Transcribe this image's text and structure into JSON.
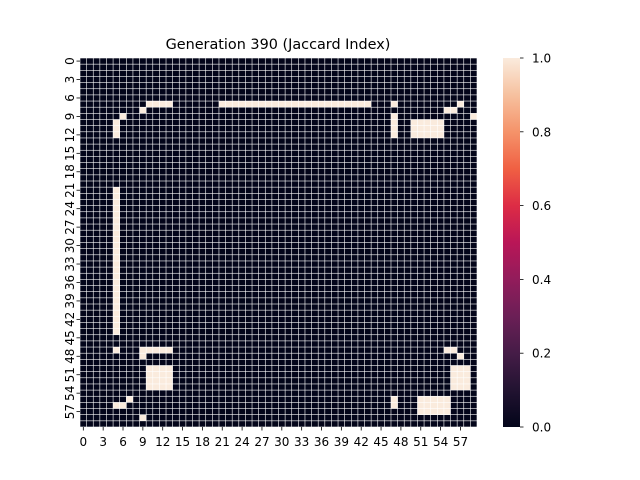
{
  "chart_data": {
    "type": "heatmap",
    "title": "Generation 390 (Jaccard Index)",
    "xlabel": "",
    "ylabel": "",
    "n_rows": 60,
    "n_cols": 60,
    "x_tick_labels": [
      "0",
      "3",
      "6",
      "9",
      "12",
      "15",
      "18",
      "21",
      "24",
      "27",
      "30",
      "33",
      "36",
      "39",
      "42",
      "45",
      "48",
      "51",
      "54",
      "57"
    ],
    "y_tick_labels": [
      "0",
      "3",
      "6",
      "9",
      "12",
      "15",
      "18",
      "21",
      "24",
      "27",
      "30",
      "33",
      "36",
      "39",
      "42",
      "45",
      "48",
      "51",
      "54",
      "57"
    ],
    "colorbar": {
      "min": 0.0,
      "max": 1.0,
      "tick_labels": [
        "0.0",
        "0.2",
        "0.4",
        "0.6",
        "0.8",
        "1.0"
      ],
      "colormap": "rocket"
    },
    "colors": {
      "background": "#000000",
      "zero": "#03051a",
      "one": "#faebdd",
      "grid": "#ffffff"
    },
    "value_default": 0.0,
    "value_high": 1.0,
    "high_value_cells": [
      {
        "rows": [
          7,
          7
        ],
        "cols": [
          10,
          13
        ]
      },
      {
        "rows": [
          7,
          7
        ],
        "cols": [
          21,
          43
        ]
      },
      {
        "rows": [
          8,
          8
        ],
        "cols": [
          9,
          9
        ]
      },
      {
        "rows": [
          7,
          7
        ],
        "cols": [
          47,
          47
        ]
      },
      {
        "rows": [
          7,
          7
        ],
        "cols": [
          57,
          57
        ]
      },
      {
        "rows": [
          8,
          8
        ],
        "cols": [
          55,
          56
        ]
      },
      {
        "rows": [
          9,
          9
        ],
        "cols": [
          59,
          59
        ]
      },
      {
        "rows": [
          9,
          9
        ],
        "cols": [
          6,
          6
        ]
      },
      {
        "rows": [
          10,
          12
        ],
        "cols": [
          5,
          5
        ]
      },
      {
        "rows": [
          9,
          12
        ],
        "cols": [
          47,
          47
        ]
      },
      {
        "rows": [
          10,
          12
        ],
        "cols": [
          50,
          54
        ]
      },
      {
        "rows": [
          21,
          44
        ],
        "cols": [
          5,
          5
        ]
      },
      {
        "rows": [
          47,
          47
        ],
        "cols": [
          5,
          5
        ]
      },
      {
        "rows": [
          47,
          47
        ],
        "cols": [
          9,
          13
        ]
      },
      {
        "rows": [
          47,
          47
        ],
        "cols": [
          55,
          56
        ]
      },
      {
        "rows": [
          48,
          48
        ],
        "cols": [
          9,
          9
        ]
      },
      {
        "rows": [
          48,
          48
        ],
        "cols": [
          57,
          57
        ]
      },
      {
        "rows": [
          50,
          53
        ],
        "cols": [
          10,
          13
        ]
      },
      {
        "rows": [
          50,
          53
        ],
        "cols": [
          56,
          58
        ]
      },
      {
        "rows": [
          55,
          57
        ],
        "cols": [
          51,
          55
        ]
      },
      {
        "rows": [
          55,
          56
        ],
        "cols": [
          47,
          47
        ]
      },
      {
        "rows": [
          55,
          55
        ],
        "cols": [
          7,
          7
        ]
      },
      {
        "rows": [
          56,
          56
        ],
        "cols": [
          5,
          6
        ]
      },
      {
        "rows": [
          58,
          58
        ],
        "cols": [
          9,
          9
        ]
      }
    ]
  }
}
